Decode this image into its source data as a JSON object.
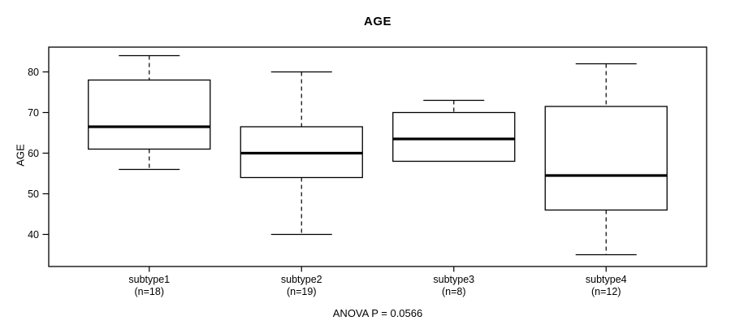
{
  "page": {
    "background": "#ffffff",
    "foreground": "#000000",
    "box_fill": "#ffffff"
  },
  "chart_data": {
    "type": "boxplot",
    "title": "AGE",
    "ylabel": "AGE",
    "xlabel": "",
    "annotation": "ANOVA P = 0.0566",
    "yticks": [
      40,
      50,
      60,
      70,
      80
    ],
    "ylim": [
      32.1,
      86.1
    ],
    "grid": false,
    "whisker_linestyle": "dashed",
    "groups": [
      {
        "label": "subtype1",
        "sublabel": "(n=18)",
        "n": 18,
        "whisker_low": 56,
        "q1": 61,
        "median": 66.5,
        "q3": 78,
        "whisker_high": 84
      },
      {
        "label": "subtype2",
        "sublabel": "(n=19)",
        "n": 19,
        "whisker_low": 40,
        "q1": 54,
        "median": 60,
        "q3": 66.5,
        "whisker_high": 80
      },
      {
        "label": "subtype3",
        "sublabel": "(n=8)",
        "n": 8,
        "whisker_low": 58,
        "q1": 58,
        "median": 63.5,
        "q3": 70,
        "whisker_high": 73
      },
      {
        "label": "subtype4",
        "sublabel": "(n=12)",
        "n": 12,
        "whisker_low": 35,
        "q1": 46,
        "median": 54.5,
        "q3": 71.5,
        "whisker_high": 82
      }
    ]
  }
}
